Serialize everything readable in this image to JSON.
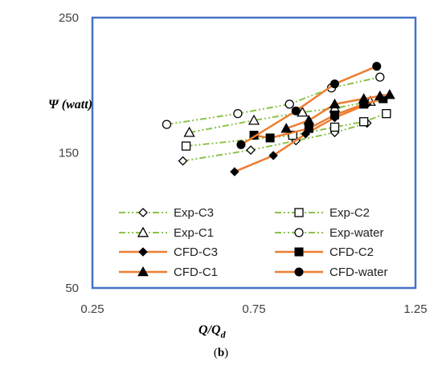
{
  "chart_data": {
    "type": "line",
    "xlabel": "Q/Q",
    "xlabel_sub": "d",
    "ylabel": "Ψ (watt)",
    "caption_open": "(",
    "caption_letter": "b",
    "caption_close": ")",
    "xlim": [
      0.25,
      1.25
    ],
    "ylim": [
      50,
      250
    ],
    "xticks": [
      0.25,
      0.75,
      1.25
    ],
    "yticks": [
      50,
      150,
      250
    ],
    "xtick_labels": [
      "0.25",
      "0.75",
      "1.25"
    ],
    "ytick_labels": [
      "50",
      "150",
      "250"
    ],
    "grid": false,
    "legend_position": "bottom",
    "colors": {
      "exp": "#8bc34a",
      "cfd": "#ed7d31",
      "frame": "#4472c4",
      "marker": "#000000"
    },
    "series": [
      {
        "name": "Exp-C3",
        "kind": "exp",
        "marker": "diamond-open",
        "x": [
          0.53,
          0.74,
          0.88,
          1.0,
          1.1
        ],
        "y": [
          144,
          152,
          159,
          165,
          172
        ]
      },
      {
        "name": "Exp-C2",
        "kind": "exp",
        "marker": "square-open",
        "x": [
          0.54,
          0.87,
          1.0,
          1.09,
          1.16
        ],
        "y": [
          155,
          163,
          169,
          173,
          179
        ]
      },
      {
        "name": "Exp-C1",
        "kind": "exp",
        "marker": "triangle-open",
        "x": [
          0.55,
          0.75,
          0.9,
          1.0,
          1.11
        ],
        "y": [
          165,
          174,
          180,
          183,
          188
        ]
      },
      {
        "name": "Exp-water",
        "kind": "exp",
        "marker": "circle-open",
        "x": [
          0.48,
          0.7,
          0.86,
          0.99,
          1.14
        ],
        "y": [
          171,
          179,
          186,
          198,
          206
        ]
      },
      {
        "name": "CFD-C3",
        "kind": "cfd",
        "marker": "diamond-filled",
        "x": [
          0.69,
          0.81,
          0.91,
          1.0,
          1.1,
          1.14
        ],
        "y": [
          136,
          148,
          164,
          176,
          186,
          190
        ]
      },
      {
        "name": "CFD-C2",
        "kind": "cfd",
        "marker": "square-filled",
        "x": [
          0.75,
          0.8,
          0.92,
          1.0,
          1.09,
          1.15
        ],
        "y": [
          163,
          161,
          168,
          178,
          186,
          190
        ]
      },
      {
        "name": "CFD-C1",
        "kind": "cfd",
        "marker": "triangle-filled",
        "x": [
          0.85,
          0.92,
          1.0,
          1.09,
          1.14,
          1.17
        ],
        "y": [
          168,
          174,
          186,
          190,
          192,
          193
        ]
      },
      {
        "name": "CFD-water",
        "kind": "cfd",
        "marker": "circle-filled",
        "x": [
          0.71,
          0.88,
          1.0,
          1.13
        ],
        "y": [
          156,
          181,
          201,
          214
        ]
      }
    ]
  }
}
